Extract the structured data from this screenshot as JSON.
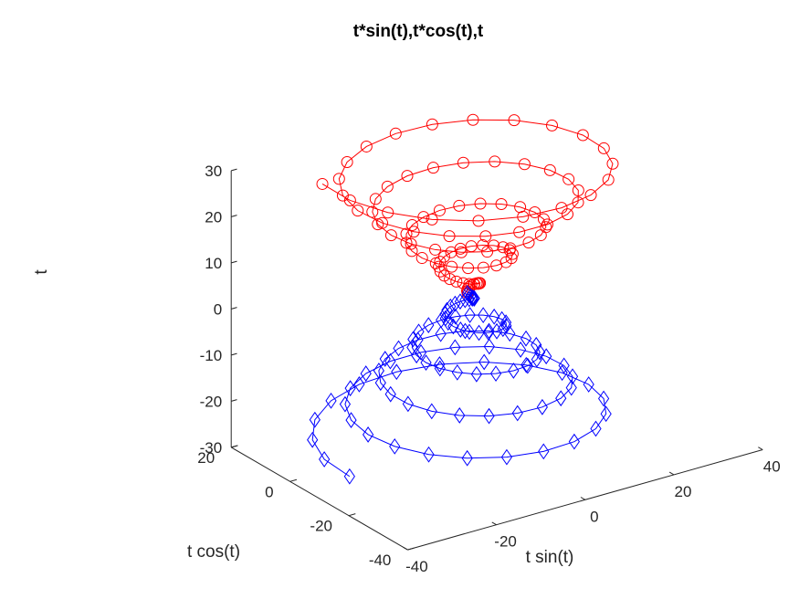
{
  "chart_data": {
    "type": "scatter",
    "subtype": "line3d",
    "title": "t*sin(t),t*cos(t),t",
    "xlabel": "t sin(t)",
    "ylabel": "t cos(t)",
    "zlabel": "t",
    "xlim": [
      -40,
      40
    ],
    "ylim": [
      -40,
      20
    ],
    "zlim": [
      -30,
      30
    ],
    "xticks": [
      "-40",
      "-20",
      "0",
      "20",
      "40"
    ],
    "yticks": [
      "-40",
      "-20",
      "0",
      "20"
    ],
    "zticks": [
      "-30",
      "-20",
      "-10",
      "0",
      "10",
      "20",
      "30"
    ],
    "grid": false,
    "series": [
      {
        "x_expr": "t*sin(t)",
        "y_expr": "t*cos(t)",
        "z_expr": "t",
        "t_range": [
          0,
          30
        ],
        "points": 100,
        "color": "#ff0000",
        "marker": "circle"
      },
      {
        "x_expr": "t*sin(t)",
        "y_expr": "t*cos(t)",
        "z_expr": "t",
        "t_range": [
          0,
          -30
        ],
        "points": 100,
        "color": "#0000ff",
        "marker": "diamond"
      }
    ]
  }
}
